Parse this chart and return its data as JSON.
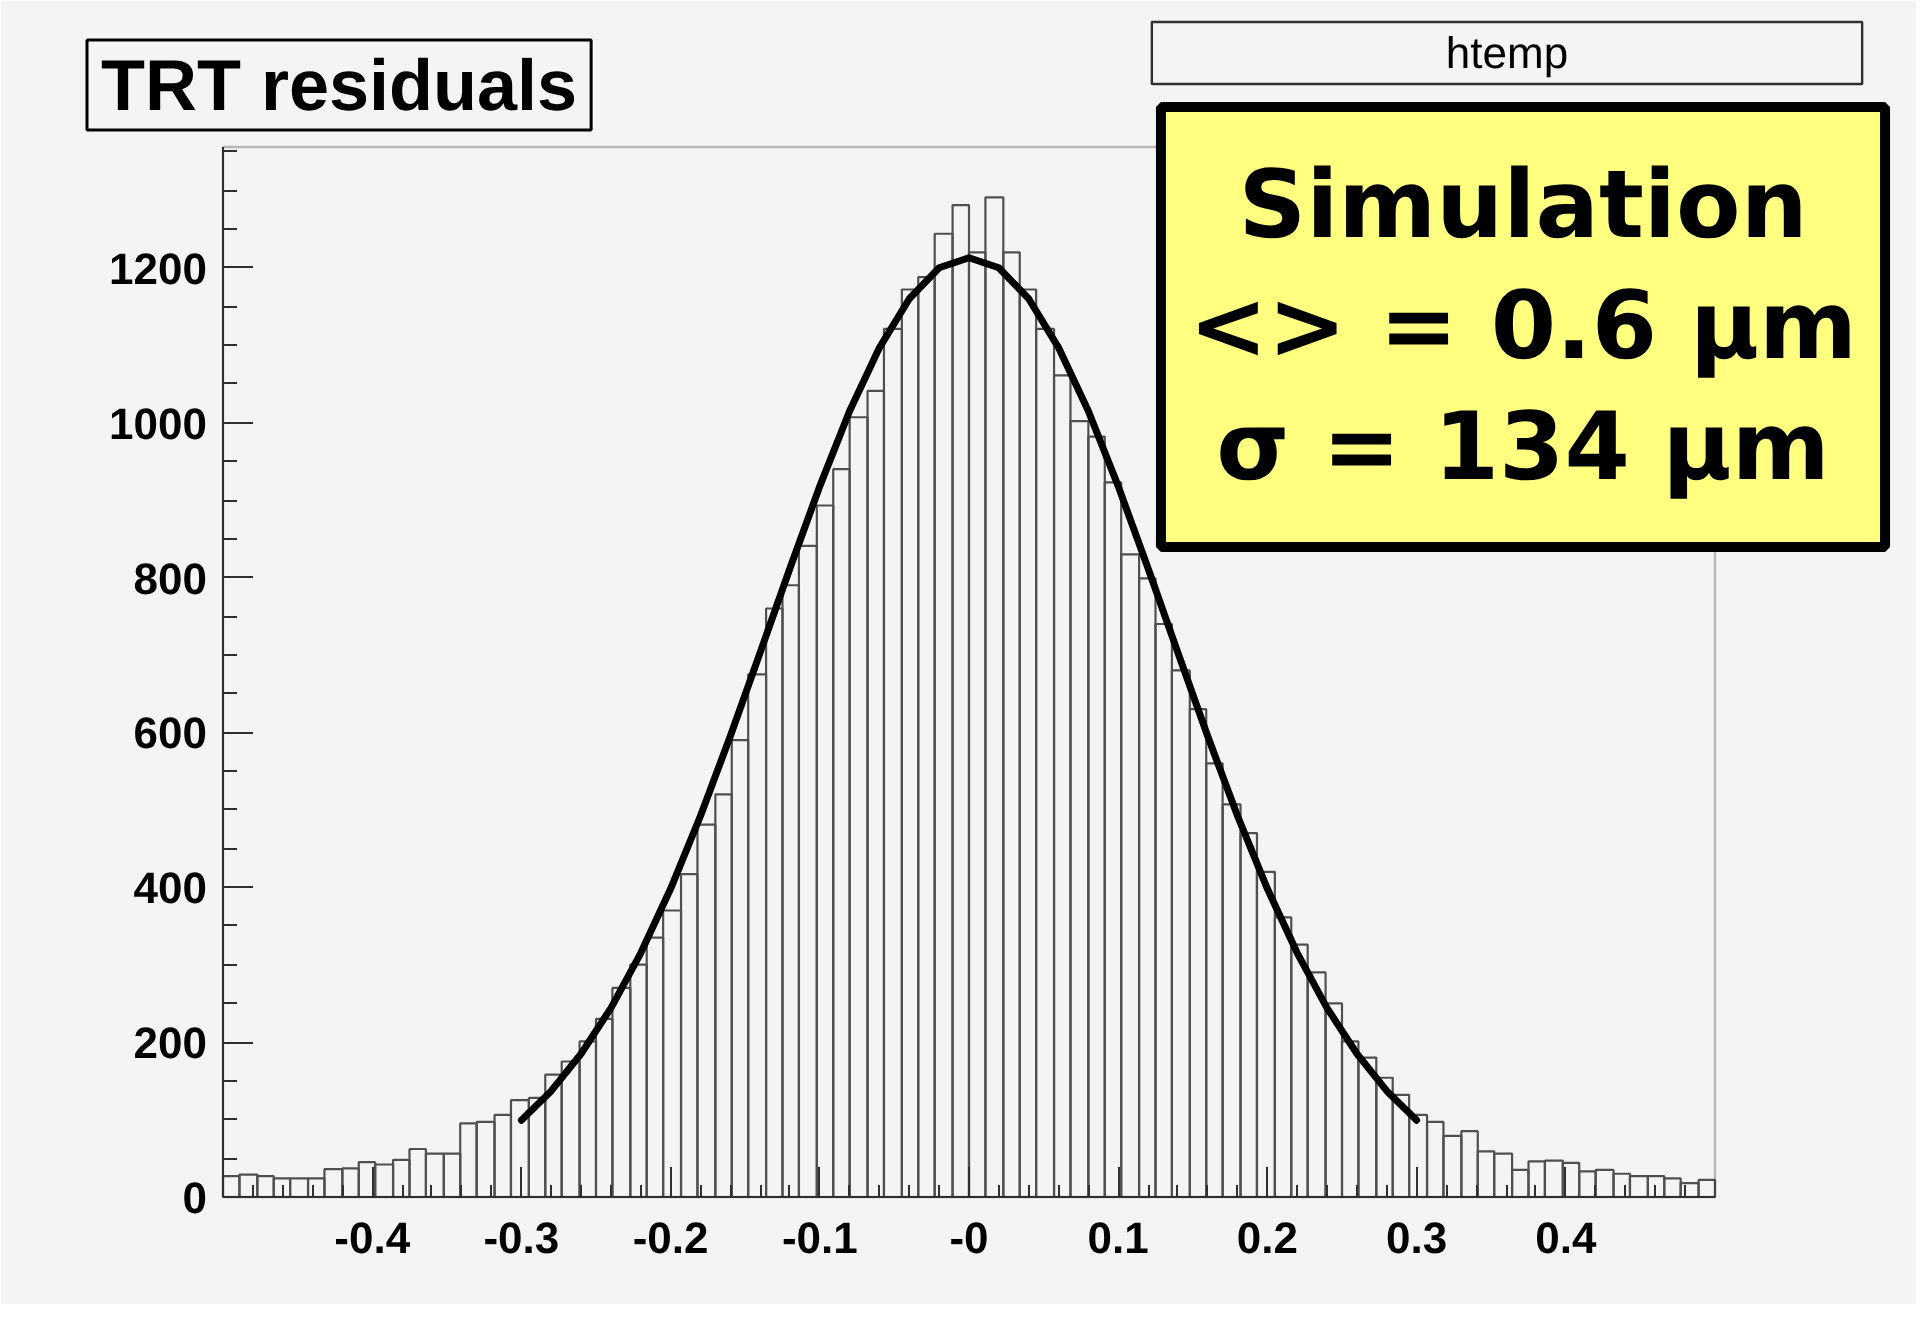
{
  "chart_data": {
    "type": "histogram",
    "title": "TRT residuals",
    "bins": [
      -0.5,
      -0.489,
      -0.477,
      -0.466,
      -0.455,
      -0.443,
      -0.432,
      -0.42,
      -0.409,
      -0.398,
      -0.386,
      -0.375,
      -0.364,
      -0.352,
      -0.341,
      -0.33,
      -0.318,
      -0.307,
      -0.295,
      -0.284,
      -0.273,
      -0.261,
      -0.25,
      -0.239,
      -0.227,
      -0.216,
      -0.205,
      -0.193,
      -0.182,
      -0.17,
      -0.159,
      -0.148,
      -0.136,
      -0.125,
      -0.114,
      -0.102,
      -0.091,
      -0.08,
      -0.068,
      -0.057,
      -0.045,
      -0.034,
      -0.023,
      -0.011,
      0,
      0.011,
      0.023,
      0.034,
      0.045,
      0.057,
      0.068,
      0.08,
      0.091,
      0.102,
      0.114,
      0.125,
      0.136,
      0.148,
      0.159,
      0.17,
      0.182,
      0.193,
      0.205,
      0.216,
      0.227,
      0.239,
      0.25,
      0.261,
      0.273,
      0.284,
      0.295,
      0.307,
      0.318,
      0.33,
      0.341,
      0.352,
      0.364,
      0.375,
      0.386,
      0.398,
      0.409,
      0.42,
      0.432,
      0.443,
      0.455,
      0.466,
      0.477,
      0.489,
      0.5
    ],
    "values": [
      27,
      29,
      27,
      24,
      24,
      24,
      36,
      37,
      45,
      42,
      48,
      62,
      56,
      56,
      95,
      97,
      106,
      125,
      128,
      158,
      175,
      201,
      230,
      270,
      300,
      335,
      370,
      417,
      481,
      520,
      590,
      675,
      760,
      790,
      841,
      893,
      940,
      1007,
      1041,
      1121,
      1172,
      1188,
      1244,
      1281,
      1220,
      1291,
      1220,
      1172,
      1121,
      1061,
      1002,
      982,
      923,
      830,
      799,
      740,
      680,
      630,
      560,
      507,
      470,
      420,
      361,
      326,
      290,
      250,
      201,
      180,
      154,
      132,
      106,
      97,
      79,
      85,
      59,
      56,
      35,
      46,
      47,
      44,
      33,
      35,
      30,
      27,
      27,
      24,
      18,
      22
    ],
    "color": "#505050",
    "series": [
      {
        "type": "line",
        "color": "#000000",
        "x": [
          -0.3,
          -0.28,
          -0.26,
          -0.24,
          -0.22,
          -0.2,
          -0.18,
          -0.16,
          -0.14,
          -0.12,
          -0.1,
          -0.08,
          -0.06,
          -0.04,
          -0.02,
          0,
          0.02,
          0.04,
          0.06,
          0.08,
          0.1,
          0.12,
          0.14,
          0.16,
          0.18,
          0.2,
          0.22,
          0.24,
          0.26,
          0.28,
          0.3
        ],
        "values": [
          99,
          137,
          185,
          244,
          315,
          398,
          492,
          595,
          703,
          812,
          918,
          1015,
          1097,
          1160,
          1200,
          1213,
          1200,
          1160,
          1097,
          1015,
          918,
          812,
          703,
          595,
          492,
          398,
          315,
          244,
          185,
          137,
          99
        ]
      }
    ],
    "xlim": [
      -0.5,
      0.5
    ],
    "ylim": [
      0,
      1356
    ],
    "xticks": [
      {
        "value": -0.48,
        "label": null
      },
      {
        "value": -0.46,
        "label": null
      },
      {
        "value": -0.44,
        "label": null
      },
      {
        "value": -0.42,
        "label": null
      },
      -0.4,
      {
        "value": -0.38,
        "label": null
      },
      {
        "value": -0.36,
        "label": null
      },
      {
        "value": -0.34,
        "label": null
      },
      {
        "value": -0.32,
        "label": null
      },
      -0.3,
      {
        "value": -0.28,
        "label": null
      },
      {
        "value": -0.26,
        "label": null
      },
      {
        "value": -0.24,
        "label": null
      },
      {
        "value": -0.22,
        "label": null
      },
      -0.2,
      {
        "value": -0.18,
        "label": null
      },
      {
        "value": -0.16,
        "label": null
      },
      {
        "value": -0.14,
        "label": null
      },
      {
        "value": -0.12,
        "label": null
      },
      -0.1,
      {
        "value": -0.08,
        "label": null
      },
      {
        "value": -0.06,
        "label": null
      },
      {
        "value": -0.04,
        "label": null
      },
      {
        "value": -0.02,
        "label": null
      },
      {
        "value": 0,
        "label": "-0"
      },
      {
        "value": 0.02,
        "label": null
      },
      {
        "value": 0.04,
        "label": null
      },
      {
        "value": 0.06,
        "label": null
      },
      {
        "value": 0.08,
        "label": null
      },
      0.1,
      {
        "value": 0.12,
        "label": null
      },
      {
        "value": 0.14,
        "label": null
      },
      {
        "value": 0.16,
        "label": null
      },
      {
        "value": 0.18,
        "label": null
      },
      0.2,
      {
        "value": 0.22,
        "label": null
      },
      {
        "value": 0.24,
        "label": null
      },
      {
        "value": 0.26,
        "label": null
      },
      {
        "value": 0.28,
        "label": null
      },
      0.3,
      {
        "value": 0.32,
        "label": null
      },
      {
        "value": 0.34,
        "label": null
      },
      {
        "value": 0.36,
        "label": null
      },
      {
        "value": 0.38,
        "label": null
      },
      0.4,
      {
        "value": 0.42,
        "label": null
      },
      {
        "value": 0.44,
        "label": null
      },
      {
        "value": 0.46,
        "label": null
      },
      {
        "value": 0.48,
        "label": null
      }
    ],
    "yticks": [
      0,
      {
        "value": 50,
        "label": null
      },
      {
        "value": 100,
        "label": null
      },
      {
        "value": 150,
        "label": null
      },
      200,
      {
        "value": 250,
        "label": null
      },
      {
        "value": 300,
        "label": null
      },
      {
        "value": 350,
        "label": null
      },
      400,
      {
        "value": 450,
        "label": null
      },
      {
        "value": 500,
        "label": null
      },
      {
        "value": 550,
        "label": null
      },
      600,
      {
        "value": 650,
        "label": null
      },
      {
        "value": 700,
        "label": null
      },
      {
        "value": 750,
        "label": null
      },
      800,
      {
        "value": 850,
        "label": null
      },
      {
        "value": 900,
        "label": null
      },
      {
        "value": 950,
        "label": null
      },
      1000,
      {
        "value": 1050,
        "label": null
      },
      {
        "value": 1100,
        "label": null
      },
      {
        "value": 1150,
        "label": null
      },
      1200,
      {
        "value": 1250,
        "label": null
      },
      {
        "value": 1300,
        "label": null
      },
      {
        "value": 1350,
        "label": null
      }
    ],
    "annotations": [
      "htemp",
      "Simulation",
      "<> = 0.6 μm",
      "σ = 134 μm"
    ],
    "grid": false
  }
}
